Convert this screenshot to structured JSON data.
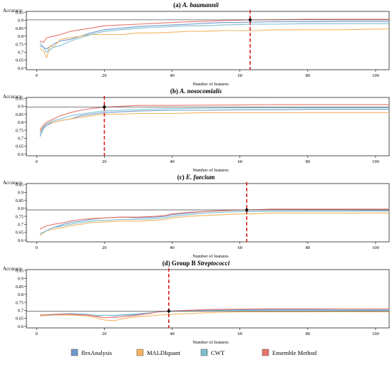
{
  "legend": {
    "placement": "bottom",
    "items": [
      {
        "name": "flexAnalysis",
        "color": "#6f98cc"
      },
      {
        "name": "MALDIquant",
        "color": "#f5b462"
      },
      {
        "name": "CWT",
        "color": "#7fbfcf"
      },
      {
        "name": "Ensemble Method",
        "color": "#e8736a"
      }
    ]
  },
  "chart_data": [
    {
      "type": "line",
      "title_prefix": "(a)",
      "title_organism": "A. baumannii",
      "xlabel": "Number of features",
      "ylabel": "Accuracy",
      "xlim": [
        -3,
        104
      ],
      "ylim": [
        0.59,
        0.955
      ],
      "xticks": [
        0,
        20,
        40,
        60,
        80,
        100
      ],
      "yticks": [
        0.6,
        0.65,
        0.7,
        0.75,
        0.8,
        0.85,
        0.9,
        0.95
      ],
      "grid": false,
      "reference_line": 0.902,
      "selected_features": 63,
      "marker": {
        "x": 63,
        "y": 0.902
      },
      "series": [
        {
          "name": "flexAnalysis",
          "color": "#6f98cc",
          "x": [
            1,
            3,
            5,
            7,
            10,
            13,
            16,
            20,
            25,
            30,
            35,
            40,
            45,
            50,
            55,
            60,
            63,
            70,
            80,
            90,
            104
          ],
          "values": [
            0.74,
            0.72,
            0.75,
            0.77,
            0.78,
            0.8,
            0.82,
            0.84,
            0.85,
            0.86,
            0.865,
            0.87,
            0.875,
            0.88,
            0.885,
            0.885,
            0.888,
            0.89,
            0.89,
            0.892,
            0.892
          ]
        },
        {
          "name": "MALDIquant",
          "color": "#f5b462",
          "x": [
            1,
            2,
            3,
            4,
            5,
            7,
            10,
            13,
            16,
            20,
            25,
            30,
            35,
            40,
            45,
            50,
            55,
            60,
            65,
            70,
            80,
            90,
            104
          ],
          "values": [
            0.72,
            0.71,
            0.665,
            0.74,
            0.73,
            0.78,
            0.79,
            0.8,
            0.81,
            0.81,
            0.81,
            0.82,
            0.82,
            0.825,
            0.83,
            0.83,
            0.835,
            0.835,
            0.835,
            0.84,
            0.84,
            0.84,
            0.845
          ]
        },
        {
          "name": "CWT",
          "color": "#7fbfcf",
          "x": [
            1,
            3,
            5,
            7,
            10,
            13,
            16,
            20,
            25,
            30,
            35,
            40,
            45,
            50,
            55,
            60,
            63,
            70,
            80,
            90,
            104
          ],
          "values": [
            0.76,
            0.7,
            0.73,
            0.74,
            0.77,
            0.79,
            0.81,
            0.83,
            0.84,
            0.85,
            0.855,
            0.86,
            0.865,
            0.865,
            0.87,
            0.872,
            0.875,
            0.875,
            0.878,
            0.878,
            0.878
          ]
        },
        {
          "name": "Ensemble Method",
          "color": "#e8736a",
          "x": [
            1,
            2,
            3,
            5,
            7,
            10,
            13,
            16,
            20,
            25,
            30,
            35,
            40,
            45,
            50,
            55,
            60,
            63,
            70,
            80,
            90,
            104
          ],
          "values": [
            0.77,
            0.76,
            0.79,
            0.8,
            0.81,
            0.83,
            0.84,
            0.85,
            0.865,
            0.87,
            0.875,
            0.88,
            0.885,
            0.89,
            0.893,
            0.897,
            0.9,
            0.902,
            0.903,
            0.905,
            0.905,
            0.905
          ]
        }
      ]
    },
    {
      "type": "line",
      "title_prefix": "(b)",
      "title_organism": "A. nosocomialis",
      "xlabel": "Number of features",
      "ylabel": "Accuracy",
      "xlim": [
        -3,
        104
      ],
      "ylim": [
        0.59,
        0.955
      ],
      "xticks": [
        0,
        20,
        40,
        60,
        80,
        100
      ],
      "yticks": [
        0.6,
        0.65,
        0.7,
        0.75,
        0.8,
        0.85,
        0.9,
        0.95
      ],
      "grid": false,
      "reference_line": 0.895,
      "selected_features": 20,
      "marker": {
        "x": 20,
        "y": 0.895
      },
      "series": [
        {
          "name": "flexAnalysis",
          "color": "#6f98cc",
          "x": [
            1,
            2,
            3,
            5,
            7,
            10,
            13,
            16,
            20,
            25,
            30,
            40,
            50,
            60,
            70,
            80,
            90,
            104
          ],
          "values": [
            0.71,
            0.76,
            0.78,
            0.8,
            0.81,
            0.82,
            0.84,
            0.85,
            0.86,
            0.865,
            0.87,
            0.875,
            0.875,
            0.878,
            0.878,
            0.88,
            0.88,
            0.88
          ]
        },
        {
          "name": "MALDIquant",
          "color": "#f5b462",
          "x": [
            1,
            2,
            3,
            5,
            7,
            10,
            13,
            16,
            20,
            25,
            30,
            40,
            50,
            60,
            70,
            80,
            90,
            104
          ],
          "values": [
            0.74,
            0.77,
            0.79,
            0.8,
            0.81,
            0.82,
            0.83,
            0.84,
            0.85,
            0.85,
            0.855,
            0.855,
            0.86,
            0.86,
            0.86,
            0.86,
            0.86,
            0.86
          ]
        },
        {
          "name": "CWT",
          "color": "#7fbfcf",
          "x": [
            1,
            2,
            3,
            5,
            7,
            10,
            13,
            16,
            20,
            25,
            30,
            40,
            50,
            60,
            70,
            80,
            90,
            104
          ],
          "values": [
            0.73,
            0.77,
            0.79,
            0.81,
            0.82,
            0.84,
            0.85,
            0.86,
            0.87,
            0.875,
            0.88,
            0.885,
            0.888,
            0.89,
            0.89,
            0.89,
            0.89,
            0.89
          ]
        },
        {
          "name": "Ensemble Method",
          "color": "#e8736a",
          "x": [
            1,
            2,
            3,
            5,
            7,
            10,
            13,
            16,
            20,
            25,
            30,
            40,
            50,
            60,
            70,
            80,
            90,
            104
          ],
          "values": [
            0.75,
            0.78,
            0.8,
            0.82,
            0.84,
            0.86,
            0.875,
            0.885,
            0.895,
            0.9,
            0.905,
            0.905,
            0.907,
            0.908,
            0.91,
            0.91,
            0.91,
            0.91
          ]
        }
      ]
    },
    {
      "type": "line",
      "title_prefix": "(c)",
      "title_organism": "E. faecium",
      "xlabel": "Number of features",
      "ylabel": "Accuracy",
      "xlim": [
        -3,
        104
      ],
      "ylim": [
        0.59,
        0.955
      ],
      "xticks": [
        0,
        20,
        40,
        60,
        80,
        100
      ],
      "yticks": [
        0.6,
        0.65,
        0.7,
        0.75,
        0.8,
        0.85,
        0.9,
        0.95
      ],
      "grid": false,
      "reference_line": 0.79,
      "selected_features": 62,
      "marker": {
        "x": 62,
        "y": 0.79
      },
      "series": [
        {
          "name": "flexAnalysis",
          "color": "#6f98cc",
          "x": [
            1,
            3,
            5,
            8,
            10,
            13,
            16,
            20,
            25,
            30,
            35,
            38,
            40,
            45,
            50,
            55,
            60,
            62,
            70,
            80,
            90,
            104
          ],
          "values": [
            0.64,
            0.66,
            0.68,
            0.7,
            0.71,
            0.72,
            0.73,
            0.74,
            0.745,
            0.74,
            0.745,
            0.75,
            0.76,
            0.77,
            0.78,
            0.785,
            0.79,
            0.79,
            0.79,
            0.79,
            0.79,
            0.788
          ]
        },
        {
          "name": "MALDIquant",
          "color": "#f5b462",
          "x": [
            1,
            3,
            5,
            8,
            10,
            13,
            16,
            20,
            25,
            30,
            35,
            38,
            40,
            45,
            50,
            55,
            60,
            62,
            70,
            80,
            90,
            104
          ],
          "values": [
            0.63,
            0.66,
            0.67,
            0.68,
            0.69,
            0.7,
            0.71,
            0.715,
            0.72,
            0.72,
            0.725,
            0.73,
            0.74,
            0.75,
            0.755,
            0.76,
            0.765,
            0.765,
            0.77,
            0.77,
            0.77,
            0.77
          ]
        },
        {
          "name": "CWT",
          "color": "#7fbfcf",
          "x": [
            1,
            3,
            5,
            8,
            10,
            13,
            16,
            20,
            25,
            30,
            35,
            38,
            40,
            45,
            50,
            55,
            60,
            62,
            70,
            80,
            90,
            104
          ],
          "values": [
            0.64,
            0.66,
            0.68,
            0.69,
            0.7,
            0.71,
            0.72,
            0.725,
            0.73,
            0.73,
            0.735,
            0.74,
            0.75,
            0.76,
            0.77,
            0.775,
            0.78,
            0.78,
            0.78,
            0.782,
            0.782,
            0.782
          ]
        },
        {
          "name": "Ensemble Method",
          "color": "#e8736a",
          "x": [
            1,
            3,
            5,
            8,
            10,
            13,
            16,
            20,
            25,
            30,
            35,
            38,
            40,
            45,
            50,
            55,
            60,
            62,
            70,
            80,
            90,
            104
          ],
          "values": [
            0.67,
            0.69,
            0.7,
            0.71,
            0.72,
            0.73,
            0.735,
            0.74,
            0.745,
            0.745,
            0.75,
            0.755,
            0.765,
            0.775,
            0.78,
            0.785,
            0.79,
            0.79,
            0.795,
            0.795,
            0.795,
            0.795
          ]
        }
      ]
    },
    {
      "type": "line",
      "title_prefix": "(d) Group B",
      "title_organism": "Streptococci",
      "xlabel": "Number of features",
      "ylabel": "Accuracy",
      "xlim": [
        -3,
        104
      ],
      "ylim": [
        0.59,
        0.955
      ],
      "xticks": [
        0,
        20,
        40,
        60,
        80,
        100
      ],
      "yticks": [
        0.6,
        0.65,
        0.7,
        0.75,
        0.8,
        0.85,
        0.9,
        0.95
      ],
      "grid": false,
      "reference_line": 0.695,
      "selected_features": 39,
      "marker": {
        "x": 39,
        "y": 0.695
      },
      "series": [
        {
          "name": "flexAnalysis",
          "color": "#6f98cc",
          "x": [
            1,
            5,
            10,
            15,
            18,
            20,
            23,
            25,
            28,
            30,
            33,
            36,
            39,
            45,
            50,
            60,
            70,
            80,
            90,
            104
          ],
          "values": [
            0.67,
            0.675,
            0.68,
            0.675,
            0.665,
            0.67,
            0.665,
            0.67,
            0.67,
            0.675,
            0.68,
            0.69,
            0.695,
            0.7,
            0.7,
            0.703,
            0.705,
            0.705,
            0.703,
            0.703
          ]
        },
        {
          "name": "MALDIquant",
          "color": "#f5b462",
          "x": [
            1,
            5,
            10,
            15,
            18,
            20,
            23,
            25,
            28,
            30,
            33,
            36,
            39,
            45,
            50,
            60,
            70,
            80,
            90,
            104
          ],
          "values": [
            0.665,
            0.67,
            0.67,
            0.665,
            0.65,
            0.64,
            0.635,
            0.645,
            0.655,
            0.66,
            0.665,
            0.67,
            0.675,
            0.68,
            0.685,
            0.69,
            0.69,
            0.69,
            0.692,
            0.69
          ]
        },
        {
          "name": "CWT",
          "color": "#7fbfcf",
          "x": [
            1,
            5,
            10,
            15,
            18,
            20,
            23,
            25,
            28,
            30,
            33,
            36,
            39,
            45,
            50,
            60,
            70,
            80,
            90,
            104
          ],
          "values": [
            0.67,
            0.672,
            0.678,
            0.672,
            0.668,
            0.67,
            0.668,
            0.672,
            0.676,
            0.678,
            0.685,
            0.69,
            0.693,
            0.695,
            0.697,
            0.7,
            0.7,
            0.7,
            0.7,
            0.698
          ]
        },
        {
          "name": "Ensemble Method",
          "color": "#e8736a",
          "x": [
            1,
            5,
            10,
            15,
            18,
            20,
            23,
            25,
            28,
            30,
            33,
            36,
            39,
            45,
            50,
            60,
            70,
            80,
            90,
            104
          ],
          "values": [
            0.67,
            0.675,
            0.675,
            0.67,
            0.66,
            0.655,
            0.655,
            0.66,
            0.665,
            0.67,
            0.68,
            0.69,
            0.695,
            0.7,
            0.705,
            0.708,
            0.71,
            0.71,
            0.71,
            0.71
          ]
        }
      ]
    }
  ]
}
